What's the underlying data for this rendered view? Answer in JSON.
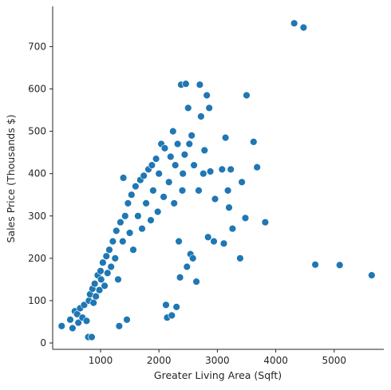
{
  "chart_data": {
    "type": "scatter",
    "title": "",
    "xlabel": "Greater Living Area (Sqft)",
    "ylabel": "Sales Price (Thousands $)",
    "xlim": [
      180,
      5850
    ],
    "ylim": [
      -15,
      795
    ],
    "xticks": [
      1000,
      2000,
      3000,
      4000,
      5000
    ],
    "yticks": [
      0,
      100,
      200,
      300,
      400,
      500,
      600,
      700
    ],
    "grid": false,
    "legend": "none",
    "point_color": "#1f77b4",
    "series": [
      {
        "points": [
          [
            334,
            40
          ],
          [
            480,
            55
          ],
          [
            520,
            35
          ],
          [
            560,
            75
          ],
          [
            600,
            68
          ],
          [
            620,
            48
          ],
          [
            650,
            82
          ],
          [
            690,
            60
          ],
          [
            720,
            90
          ],
          [
            760,
            52
          ],
          [
            790,
            14
          ],
          [
            800,
            100
          ],
          [
            820,
            115
          ],
          [
            850,
            14
          ],
          [
            860,
            128
          ],
          [
            880,
            95
          ],
          [
            900,
            140
          ],
          [
            920,
            110
          ],
          [
            950,
            160
          ],
          [
            980,
            125
          ],
          [
            1000,
            170
          ],
          [
            1010,
            150
          ],
          [
            1040,
            190
          ],
          [
            1070,
            135
          ],
          [
            1100,
            205
          ],
          [
            1120,
            165
          ],
          [
            1150,
            220
          ],
          [
            1180,
            180
          ],
          [
            1210,
            240
          ],
          [
            1250,
            200
          ],
          [
            1270,
            265
          ],
          [
            1300,
            150
          ],
          [
            1320,
            40
          ],
          [
            1340,
            285
          ],
          [
            1380,
            240
          ],
          [
            1390,
            390
          ],
          [
            1420,
            300
          ],
          [
            1450,
            55
          ],
          [
            1470,
            330
          ],
          [
            1500,
            260
          ],
          [
            1530,
            350
          ],
          [
            1560,
            220
          ],
          [
            1600,
            370
          ],
          [
            1640,
            300
          ],
          [
            1680,
            385
          ],
          [
            1710,
            270
          ],
          [
            1740,
            395
          ],
          [
            1780,
            330
          ],
          [
            1820,
            410
          ],
          [
            1860,
            290
          ],
          [
            1880,
            420
          ],
          [
            1900,
            360
          ],
          [
            1950,
            435
          ],
          [
            1980,
            310
          ],
          [
            2000,
            400
          ],
          [
            2040,
            470
          ],
          [
            2080,
            345
          ],
          [
            2100,
            460
          ],
          [
            2120,
            90
          ],
          [
            2140,
            60
          ],
          [
            2170,
            380
          ],
          [
            2200,
            440
          ],
          [
            2220,
            65
          ],
          [
            2240,
            500
          ],
          [
            2260,
            330
          ],
          [
            2280,
            420
          ],
          [
            2300,
            85
          ],
          [
            2320,
            470
          ],
          [
            2340,
            240
          ],
          [
            2360,
            155
          ],
          [
            2380,
            610
          ],
          [
            2400,
            360
          ],
          [
            2410,
            400
          ],
          [
            2440,
            445
          ],
          [
            2460,
            612
          ],
          [
            2480,
            180
          ],
          [
            2500,
            555
          ],
          [
            2520,
            470
          ],
          [
            2540,
            210
          ],
          [
            2560,
            490
          ],
          [
            2580,
            200
          ],
          [
            2600,
            420
          ],
          [
            2640,
            145
          ],
          [
            2680,
            360
          ],
          [
            2700,
            610
          ],
          [
            2720,
            535
          ],
          [
            2760,
            400
          ],
          [
            2780,
            455
          ],
          [
            2820,
            585
          ],
          [
            2840,
            250
          ],
          [
            2860,
            555
          ],
          [
            2880,
            405
          ],
          [
            2940,
            240
          ],
          [
            2960,
            340
          ],
          [
            3080,
            410
          ],
          [
            3110,
            235
          ],
          [
            3140,
            485
          ],
          [
            3180,
            360
          ],
          [
            3200,
            320
          ],
          [
            3230,
            410
          ],
          [
            3260,
            270
          ],
          [
            3390,
            200
          ],
          [
            3420,
            380
          ],
          [
            3480,
            295
          ],
          [
            3500,
            585
          ],
          [
            3620,
            475
          ],
          [
            3680,
            415
          ],
          [
            3820,
            285
          ],
          [
            4316,
            755
          ],
          [
            4476,
            745
          ],
          [
            4676,
            185
          ],
          [
            5095,
            184
          ],
          [
            5642,
            160
          ]
        ]
      }
    ]
  }
}
